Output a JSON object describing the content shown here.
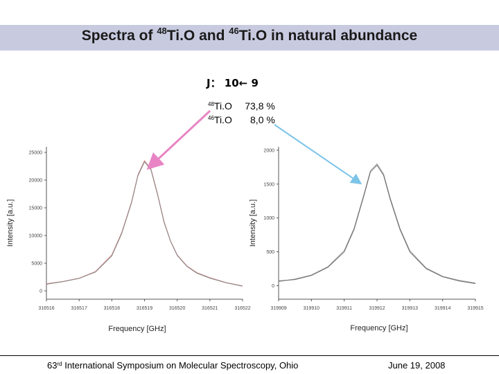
{
  "slide": {
    "title_pre": "Spectra of ",
    "iso48_mass": "48",
    "iso48_sym": "Ti.O",
    "title_mid": " and ",
    "iso46_mass": "46",
    "iso46_sym": "Ti.O",
    "title_post": " in natural abundance",
    "transition": "J： 10← 9",
    "abundance": [
      {
        "mass": "48",
        "species": "Ti.O",
        "value": "73,8 %"
      },
      {
        "mass": "46",
        "species": "Ti.O",
        "value": "8,0 %"
      }
    ],
    "footer_ordinal": "63",
    "footer_suffix": "rd",
    "footer_rest": " International Symposium on Molecular Spectroscopy, Ohio",
    "footer_date": "June 19, 2008",
    "arrow_colors": {
      "left": "#e884c4",
      "right": "#7cc4e8"
    }
  },
  "chart_data": [
    {
      "type": "line",
      "xlabel": "Frequency [GHz]",
      "ylabel": "Intensity [a.u.]",
      "xlim": [
        316516,
        316522
      ],
      "ylim": [
        -1500,
        26000
      ],
      "xticks": [
        "316516",
        "316517",
        "316518",
        "316519",
        "316520",
        "316521",
        "316522"
      ],
      "yticks": [
        "0",
        "5000",
        "10000",
        "15000",
        "20000",
        "25000"
      ],
      "series": [
        {
          "color": "#d48a8a",
          "x": [
            316516.0,
            316516.5,
            316517.0,
            316517.5,
            316518.0,
            316518.3,
            316518.6,
            316518.8,
            316519.0,
            316519.2,
            316519.4,
            316519.6,
            316519.8,
            316520.0,
            316520.3,
            316520.6,
            316521.0,
            316521.5,
            316522.0
          ],
          "y": [
            1300,
            1700,
            2300,
            3500,
            6500,
            10500,
            16000,
            21000,
            23500,
            22000,
            17500,
            12500,
            9000,
            6500,
            4500,
            3300,
            2400,
            1500,
            900
          ]
        },
        {
          "color": "#888888",
          "x": [
            316516.0,
            316516.5,
            316517.0,
            316517.5,
            316518.0,
            316518.3,
            316518.6,
            316518.8,
            316519.0,
            316519.2,
            316519.4,
            316519.6,
            316519.8,
            316520.0,
            316520.3,
            316520.6,
            316521.0,
            316521.5,
            316522.0
          ],
          "y": [
            1200,
            1650,
            2250,
            3400,
            6300,
            10300,
            15800,
            20800,
            23300,
            21800,
            17300,
            12300,
            8900,
            6400,
            4400,
            3200,
            2300,
            1450,
            850
          ]
        }
      ]
    },
    {
      "type": "line",
      "xlabel": "Frequency [GHz]",
      "ylabel": "Intensity [a.u.]",
      "xlim": [
        319909,
        319915
      ],
      "ylim": [
        -200,
        2050
      ],
      "xticks": [
        "319909",
        "319910",
        "319911",
        "319912",
        "319913",
        "319914",
        "319915"
      ],
      "yticks": [
        "0",
        "500",
        "1000",
        "1500",
        "2000"
      ],
      "series": [
        {
          "color": "#aaaaaa",
          "x": [
            319909.0,
            319909.5,
            319910.0,
            319910.5,
            319911.0,
            319911.3,
            319911.6,
            319911.8,
            319912.0,
            319912.2,
            319912.4,
            319912.7,
            319913.0,
            319913.5,
            319914.0,
            319914.5,
            319915.0
          ],
          "y": [
            60,
            100,
            160,
            280,
            520,
            850,
            1350,
            1700,
            1800,
            1650,
            1300,
            850,
            520,
            260,
            140,
            80,
            40
          ]
        },
        {
          "color": "#666666",
          "x": [
            319909.0,
            319909.5,
            319910.0,
            319910.5,
            319911.0,
            319911.3,
            319911.6,
            319911.8,
            319912.0,
            319912.2,
            319912.4,
            319912.7,
            319913.0,
            319913.5,
            319914.0,
            319914.5,
            319915.0
          ],
          "y": [
            70,
            90,
            150,
            270,
            500,
            830,
            1330,
            1680,
            1780,
            1630,
            1280,
            830,
            500,
            250,
            130,
            70,
            30
          ]
        }
      ]
    }
  ]
}
